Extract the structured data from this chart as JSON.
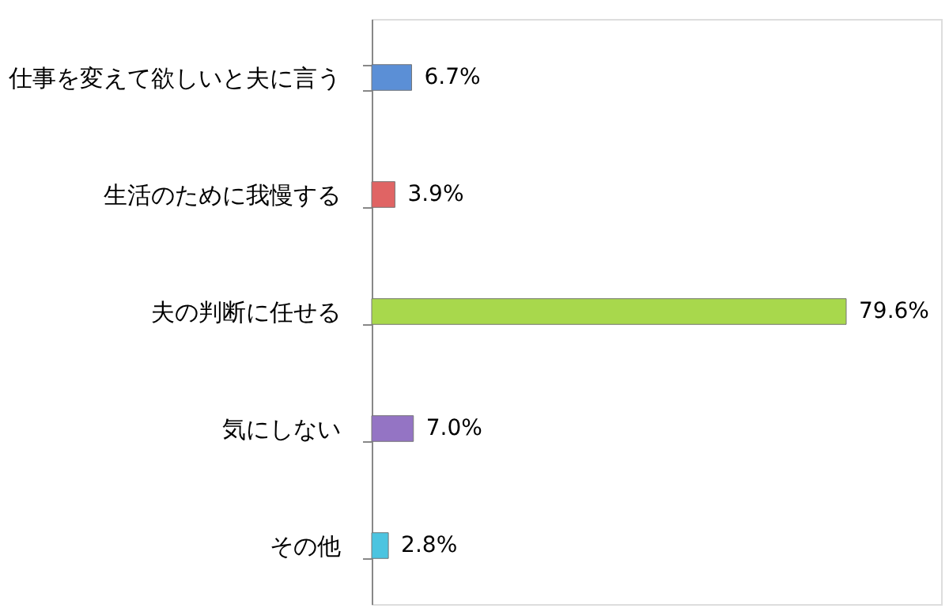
{
  "chart_data": {
    "type": "bar",
    "orientation": "horizontal",
    "categories": [
      "仕事を変えて欲しいと夫に言う",
      "生活のために我慢する",
      "夫の判断に任せる",
      "気にしない",
      "その他"
    ],
    "values": [
      6.7,
      3.9,
      79.6,
      7.0,
      2.8
    ],
    "colors": [
      "#5b8fd6",
      "#e06464",
      "#a8d84c",
      "#9474c4",
      "#4cc4e0"
    ],
    "value_labels": [
      "6.7%",
      "3.9%",
      "79.6%",
      "7.0%",
      "2.8%"
    ],
    "tick_labels": "y",
    "grid": false
  }
}
